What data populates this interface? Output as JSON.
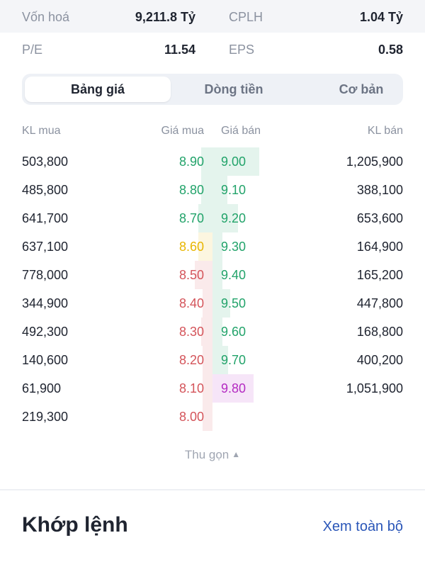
{
  "metrics": [
    {
      "label": "Vốn hoá",
      "value": "9,211.8 Tỷ",
      "label2": "CPLH",
      "value2": "1.04 Tỷ"
    },
    {
      "label": "P/E",
      "value": "11.54",
      "label2": "EPS",
      "value2": "0.58"
    }
  ],
  "tabs": [
    {
      "label": "Bảng giá",
      "active": true
    },
    {
      "label": "Dòng tiền",
      "active": false
    },
    {
      "label": "Cơ bản",
      "active": false
    }
  ],
  "orderbook": {
    "headers": {
      "kl_mua": "KL mua",
      "gia_mua": "Giá mua",
      "gia_ban": "Giá bán",
      "kl_ban": "KL bán"
    },
    "reference_price": 8.6,
    "ceiling_price": 9.8,
    "colors": {
      "up": "#22a36a",
      "down": "#d4545a",
      "reference": "#e8b500",
      "ceiling": "#b42bc2"
    },
    "rows": [
      {
        "kl_mua": "503,800",
        "gia_mua": "8.90",
        "gia_ban": "9.00",
        "kl_ban": "1,205,900"
      },
      {
        "kl_mua": "485,800",
        "gia_mua": "8.80",
        "gia_ban": "9.10",
        "kl_ban": "388,100"
      },
      {
        "kl_mua": "641,700",
        "gia_mua": "8.70",
        "gia_ban": "9.20",
        "kl_ban": "653,600"
      },
      {
        "kl_mua": "637,100",
        "gia_mua": "8.60",
        "gia_ban": "9.30",
        "kl_ban": "164,900"
      },
      {
        "kl_mua": "778,000",
        "gia_mua": "8.50",
        "gia_ban": "9.40",
        "kl_ban": "165,200"
      },
      {
        "kl_mua": "344,900",
        "gia_mua": "8.40",
        "gia_ban": "9.50",
        "kl_ban": "447,800"
      },
      {
        "kl_mua": "492,300",
        "gia_mua": "8.30",
        "gia_ban": "9.60",
        "kl_ban": "168,800"
      },
      {
        "kl_mua": "140,600",
        "gia_mua": "8.20",
        "gia_ban": "9.70",
        "kl_ban": "400,200"
      },
      {
        "kl_mua": "61,900",
        "gia_mua": "8.10",
        "gia_ban": "9.80",
        "kl_ban": "1,051,900"
      },
      {
        "kl_mua": "219,300",
        "gia_mua": "8.00",
        "gia_ban": "",
        "kl_ban": ""
      }
    ]
  },
  "collapse": {
    "label": "Thu gọn",
    "icon": "chevron-up-icon"
  },
  "matching": {
    "title": "Khớp lệnh",
    "see_all": "Xem toàn bộ"
  }
}
